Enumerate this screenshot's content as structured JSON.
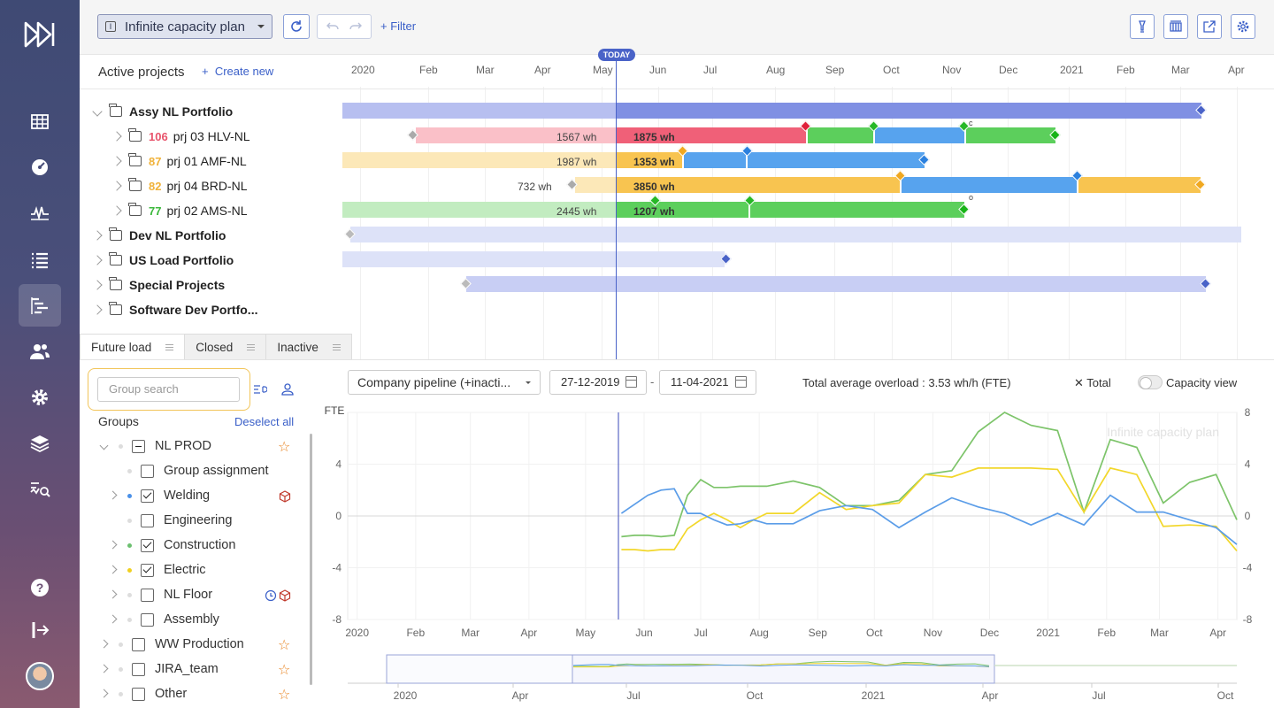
{
  "sidebar": {
    "items": [
      {
        "name": "calendar-grid-icon"
      },
      {
        "name": "dashboard-gauge-icon"
      },
      {
        "name": "activity-icon"
      },
      {
        "name": "list-icon"
      },
      {
        "name": "gantt-icon",
        "active": true
      },
      {
        "name": "users-icon"
      },
      {
        "name": "settings-gear-icon"
      },
      {
        "name": "layers-icon"
      },
      {
        "name": "analytics-search-icon"
      },
      {
        "name": "help-icon"
      },
      {
        "name": "logout-icon"
      }
    ]
  },
  "toolbar": {
    "plan_label": "Infinite capacity plan",
    "filter_label": "Filter"
  },
  "gantt": {
    "title": "Active projects",
    "create_new": "Create new",
    "today": "TODAY",
    "months": [
      "2020",
      "Feb",
      "Mar",
      "Apr",
      "May",
      "Jun",
      "Jul",
      "Aug",
      "Sep",
      "Oct",
      "Nov",
      "Dec",
      "2021",
      "Feb",
      "Mar",
      "Apr"
    ],
    "rows": [
      {
        "label": "Assy NL Portfolio",
        "type": "portfolio",
        "open": true
      },
      {
        "label": "prj 03 HLV-NL",
        "num": "106",
        "num_color": "#e8546c",
        "type": "project"
      },
      {
        "label": "prj 01 AMF-NL",
        "num": "87",
        "num_color": "#f0b23a",
        "type": "project"
      },
      {
        "label": "prj 04 BRD-NL",
        "num": "82",
        "num_color": "#f0b23a",
        "type": "project"
      },
      {
        "label": "prj 02 AMS-NL",
        "num": "77",
        "num_color": "#3cb83c",
        "type": "project"
      },
      {
        "label": "Dev NL Portfolio",
        "type": "portfolio"
      },
      {
        "label": "US Load Portfolio",
        "type": "portfolio"
      },
      {
        "label": "Special Projects",
        "type": "portfolio"
      },
      {
        "label": "Software Dev Portfo...",
        "type": "portfolio"
      }
    ],
    "bar_labels": {
      "p03_past": "1567 wh",
      "p03_future": "1875 wh",
      "p01_past": "1987 wh",
      "p01_future": "1353 wh",
      "p04_past": "732 wh",
      "p04_future": "3850 wh",
      "p02_past": "2445 wh",
      "p02_future": "1207 wh"
    },
    "marks": {
      "c": "c",
      "o": "o"
    }
  },
  "tabs": [
    {
      "label": "Future load",
      "active": true
    },
    {
      "label": "Closed"
    },
    {
      "label": "Inactive"
    }
  ],
  "groups": {
    "search_placeholder": "Group search",
    "title": "Groups",
    "deselect_all": "Deselect all",
    "items": [
      {
        "label": "NL PROD",
        "state": "partial",
        "icon": "star-icon",
        "dot": ""
      },
      {
        "label": "Group assignment",
        "state": "unchecked",
        "dot": "#ddd"
      },
      {
        "label": "Welding",
        "state": "checked",
        "icon": "cube-icon",
        "dot": "#4a90e8"
      },
      {
        "label": "Engineering",
        "state": "unchecked",
        "dot": "#ddd"
      },
      {
        "label": "Construction",
        "state": "checked",
        "dot": "#6cc070"
      },
      {
        "label": "Electric",
        "state": "checked",
        "dot": "#f0d020"
      },
      {
        "label": "NL Floor",
        "state": "unchecked",
        "icon": "clock-cube-icons",
        "dot": "#ddd"
      },
      {
        "label": "Assembly",
        "state": "unchecked",
        "dot": "#ddd"
      },
      {
        "label": "WW Production",
        "state": "unchecked",
        "icon": "star-icon",
        "dot": "#ddd"
      },
      {
        "label": "JIRA_team",
        "state": "unchecked",
        "icon": "star-icon",
        "dot": "#ddd"
      },
      {
        "label": "Other",
        "state": "unchecked",
        "icon": "star-icon",
        "dot": "#ddd"
      }
    ]
  },
  "chart_controls": {
    "pipeline": "Company pipeline (+inacti...",
    "date_from": "27-12-2019",
    "date_sep": "-",
    "date_to": "11-04-2021",
    "overload": "Total average overload : 3.53 wh/h (FTE)",
    "total_label": "Total",
    "capacity_view": "Capacity view"
  },
  "chart_data": {
    "type": "line",
    "ylabel": "FTE",
    "watermark": "Infinite capacity plan",
    "ylim": [
      -8,
      8
    ],
    "yticks": [
      4,
      0,
      -4,
      -8
    ],
    "y2ticks": [
      8,
      4,
      0,
      -4,
      -8
    ],
    "xlabels": [
      "2020",
      "Feb",
      "Mar",
      "Apr",
      "May",
      "Jun",
      "Jul",
      "Aug",
      "Sep",
      "Oct",
      "Nov",
      "Dec",
      "2021",
      "Feb",
      "Mar",
      "Apr"
    ],
    "x": [
      "2020-05-20",
      "2020-05-27",
      "2020-06-03",
      "2020-06-10",
      "2020-06-17",
      "2020-06-24",
      "2020-07-01",
      "2020-07-08",
      "2020-07-15",
      "2020-07-22",
      "2020-07-29",
      "2020-08-05",
      "2020-08-19",
      "2020-09-02",
      "2020-09-16",
      "2020-09-30",
      "2020-10-14",
      "2020-10-28",
      "2020-11-11",
      "2020-11-25",
      "2020-12-09",
      "2020-12-23",
      "2021-01-06",
      "2021-01-20",
      "2021-02-03",
      "2021-02-17",
      "2021-03-03",
      "2021-03-17",
      "2021-03-31",
      "2021-04-11"
    ],
    "series": [
      {
        "color": "#7dc46a",
        "values": [
          -1.6,
          -1.5,
          -1.5,
          -1.6,
          -1.5,
          1.6,
          2.8,
          2.2,
          2.2,
          2.3,
          2.3,
          2.3,
          2.7,
          2.2,
          0.8,
          0.8,
          1.2,
          3.2,
          3.5,
          6.5,
          8.0,
          7.0,
          6.6,
          0.3,
          5.9,
          5.3,
          1.0,
          2.6,
          3.2,
          -0.3
        ]
      },
      {
        "color": "#f2d72b",
        "values": [
          -2.6,
          -2.6,
          -2.7,
          -2.6,
          -2.6,
          -1.0,
          -0.3,
          0.2,
          -0.3,
          -0.9,
          -0.3,
          0.2,
          0.2,
          1.8,
          0.5,
          0.8,
          1.0,
          3.2,
          3.0,
          3.7,
          3.7,
          3.7,
          3.6,
          0.3,
          3.7,
          3.2,
          -0.8,
          -0.7,
          -0.8,
          -2.7
        ]
      },
      {
        "color": "#5b9de8",
        "values": [
          0.2,
          0.9,
          1.6,
          2.0,
          2.1,
          0.2,
          0.2,
          -0.3,
          -0.7,
          -0.6,
          -0.3,
          -0.6,
          -0.6,
          0.4,
          0.8,
          0.5,
          -0.9,
          0.3,
          1.4,
          0.7,
          0.2,
          -0.7,
          0.2,
          -0.7,
          1.6,
          0.3,
          0.3,
          -0.3,
          -0.9,
          -2.2
        ]
      }
    ],
    "navigator_labels": [
      "2020",
      "Apr",
      "Jul",
      "Oct",
      "2021",
      "Apr",
      "Jul",
      "Oct"
    ]
  }
}
